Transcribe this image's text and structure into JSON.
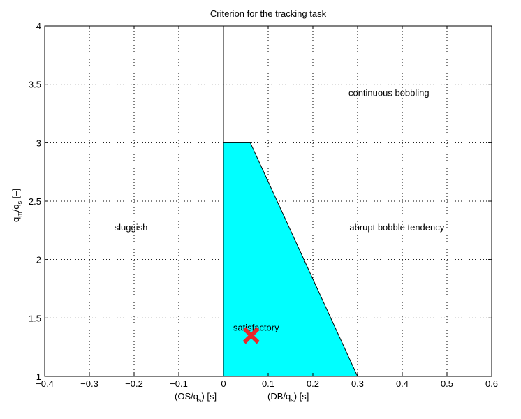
{
  "chart_data": {
    "type": "area",
    "title": "Criterion for the tracking task",
    "xlabel_left": "(OS/q",
    "xlabel_left_sub": "s",
    "xlabel_left_tail": ") [s]",
    "xlabel_right": "(DB/q",
    "xlabel_right_sub": "s",
    "xlabel_right_tail": ") [s]",
    "ylabel_main": "q",
    "ylabel_sub1": "m",
    "ylabel_mid": "/q",
    "ylabel_sub2": "s",
    "ylabel_tail": " [–]",
    "xlim": [
      -0.4,
      0.6
    ],
    "ylim": [
      1,
      4
    ],
    "xticks": [
      -0.4,
      -0.3,
      -0.2,
      -0.1,
      0,
      0.1,
      0.2,
      0.3,
      0.4,
      0.5,
      0.6
    ],
    "xtick_labels": [
      "−0.4",
      "−0.3",
      "−0.2",
      "−0.1",
      "0",
      "0.1",
      "0.2",
      "0.3",
      "0.4",
      "0.5",
      "0.6"
    ],
    "yticks": [
      1,
      1.5,
      2,
      2.5,
      3,
      3.5,
      4
    ],
    "ytick_labels": [
      "1",
      "1.5",
      "2",
      "2.5",
      "3",
      "3.5",
      "4"
    ],
    "grid": true,
    "region": {
      "color": "#00ffff",
      "x": [
        0,
        0,
        0.06,
        0.3,
        0
      ],
      "y": [
        1,
        3,
        3,
        1,
        1
      ]
    },
    "vertical_line_x": 0,
    "annotations": [
      {
        "text": "continuous bobbling",
        "x": 0.37,
        "y": 3.4
      },
      {
        "text": "sluggish",
        "x": -0.207,
        "y": 2.25
      },
      {
        "text": "abrupt bobble tendency",
        "x": 0.388,
        "y": 2.25
      },
      {
        "text": "satisfactory",
        "x": 0.073,
        "y": 1.39
      }
    ],
    "marker": {
      "x": 0.062,
      "y": 1.35,
      "symbol": "x",
      "color": "#e8262a"
    }
  }
}
